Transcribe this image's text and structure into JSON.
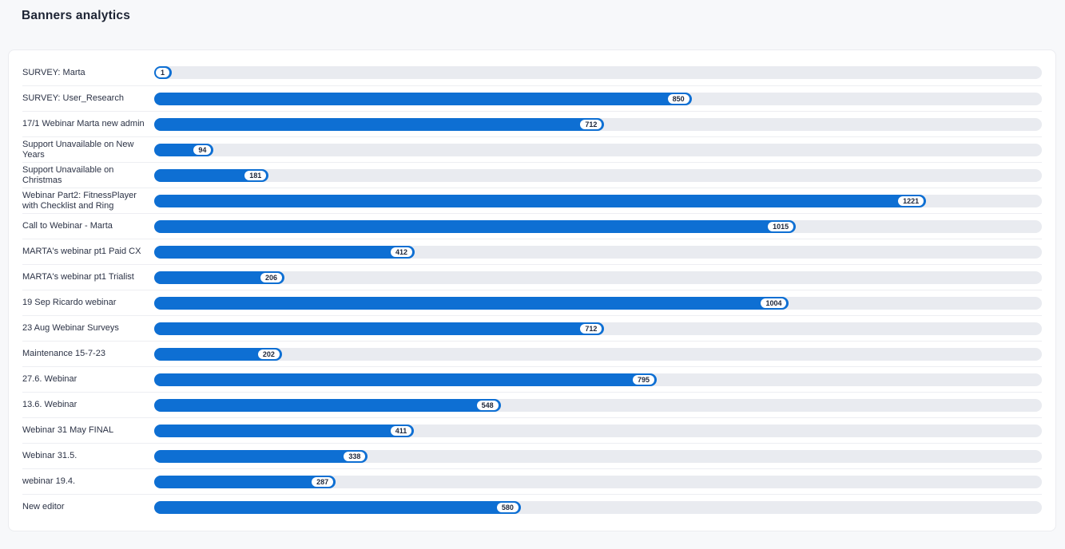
{
  "page": {
    "title": "Banners analytics"
  },
  "theme": {
    "page_bg": "#f7f8fa",
    "card_bg": "#ffffff",
    "card_border": "#ebecf0",
    "separator": "#edeef2",
    "title_color": "#1c2333",
    "label_color": "#2b3245",
    "badge_text": "#20293d",
    "bar_color": "#0e6fd3",
    "track_color": "#e9ebf0"
  },
  "chart_data": {
    "type": "bar",
    "orientation": "horizontal",
    "title": "Banners analytics",
    "categories": [
      "SURVEY: Marta",
      "SURVEY: User_Research",
      "17/1 Webinar Marta new admin",
      "Support Unavailable on New Years",
      "Support Unavailable on Christmas",
      "Webinar Part2: FitnessPlayer with Checklist and Ring",
      "Call to Webinar - Marta",
      "MARTA's webinar pt1 Paid CX",
      "MARTA's webinar pt1 Trialist",
      "19 Sep Ricardo webinar",
      "23 Aug Webinar Surveys",
      "Maintenance 15-7-23",
      "27.6. Webinar",
      "13.6. Webinar",
      "Webinar 31 May FINAL",
      "Webinar 31.5.",
      "webinar 19.4.",
      "New editor"
    ],
    "values": [
      1,
      850,
      712,
      94,
      181,
      1221,
      1015,
      412,
      206,
      1004,
      712,
      202,
      795,
      548,
      411,
      338,
      287,
      580
    ],
    "xlim": [
      0,
      1404
    ],
    "grid": false,
    "legend": false,
    "value_label_style": "white pill badge inside right end of bar"
  }
}
